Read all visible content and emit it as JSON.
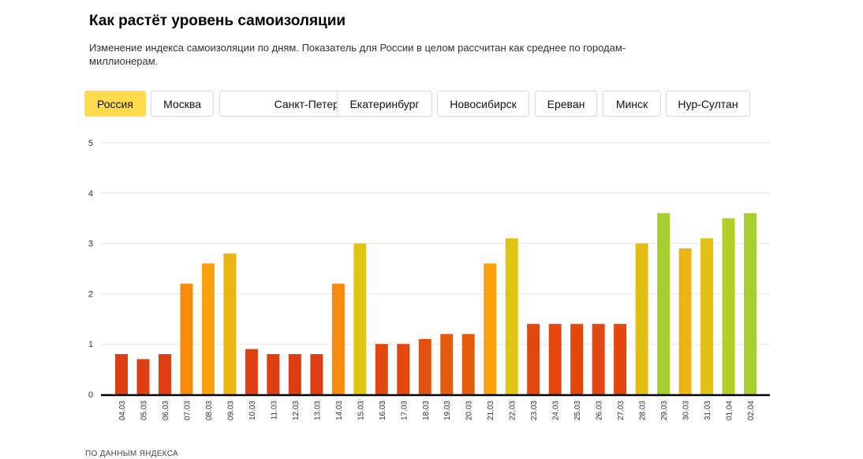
{
  "header": {
    "title": "Как растёт уровень самоизоляции",
    "subtitle": "Изменение индекса самоизоляции по дням. Показатель для России в целом рассчитан как среднее по городам-миллионерам."
  },
  "tabs": [
    {
      "label": "Россия",
      "active": true
    },
    {
      "label": "Москва",
      "active": false
    },
    {
      "label": "Санкт-Петербург",
      "active": false
    },
    {
      "label": "Екатеринбург",
      "active": false
    },
    {
      "label": "Новосибирск",
      "active": false
    },
    {
      "label": "Ереван",
      "active": false
    },
    {
      "label": "Минск",
      "active": false
    },
    {
      "label": "Нур-Султан",
      "active": false
    }
  ],
  "source": "ПО ДАННЫМ ЯНДЕКСА",
  "chart_data": {
    "type": "bar",
    "title": "",
    "xlabel": "",
    "ylabel": "",
    "ylim": [
      0,
      5
    ],
    "yticks": [
      0,
      1,
      2,
      3,
      4,
      5
    ],
    "grid": true,
    "categories": [
      "04.03",
      "05.03",
      "06.03",
      "07.03",
      "08.03",
      "09.03",
      "10.03",
      "11.03",
      "12.03",
      "13.03",
      "14.03",
      "15.03",
      "16.03",
      "17.03",
      "18.03",
      "19.03",
      "20.03",
      "21.03",
      "22.03",
      "23.03",
      "24.03",
      "25.03",
      "26.03",
      "27.03",
      "28.03",
      "29.03",
      "30.03",
      "31.03",
      "01.04",
      "02.04"
    ],
    "values": [
      0.8,
      0.7,
      0.8,
      2.2,
      2.6,
      2.8,
      0.9,
      0.8,
      0.8,
      0.8,
      2.2,
      3.0,
      1.0,
      1.0,
      1.1,
      1.2,
      1.2,
      2.6,
      3.1,
      1.4,
      1.4,
      1.4,
      1.4,
      1.4,
      3.0,
      3.6,
      2.9,
      3.1,
      3.5,
      3.6
    ],
    "colors": [
      "#dd3f12",
      "#dd3f12",
      "#dd3f12",
      "#f98b0c",
      "#f7a10c",
      "#eab413",
      "#dd3f12",
      "#dd3f12",
      "#dd3f12",
      "#dd3f12",
      "#f98b0c",
      "#e0c613",
      "#e24810",
      "#e24810",
      "#e4520f",
      "#e65c0e",
      "#e65c0e",
      "#f7a10c",
      "#e0c613",
      "#e24810",
      "#e24810",
      "#e24810",
      "#e24810",
      "#e24810",
      "#e2bd14",
      "#a5cf2e",
      "#eab413",
      "#e2c014",
      "#b3d026",
      "#a5cf2e"
    ]
  }
}
